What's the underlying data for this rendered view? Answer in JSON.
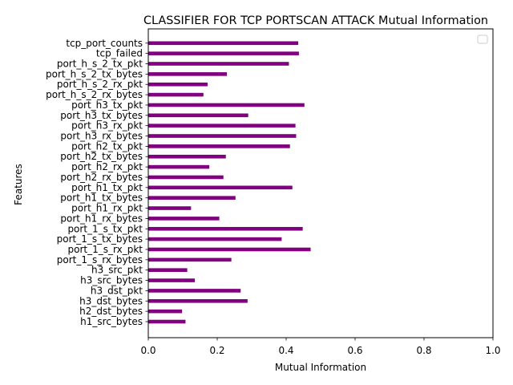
{
  "chart_data": {
    "type": "bar",
    "orientation": "horizontal",
    "title": "CLASSIFIER FOR TCP PORTSCAN ATTACK Mutual Information",
    "xlabel": "Mutual Information",
    "ylabel": "Features",
    "xlim": [
      0,
      1
    ],
    "xticks": [
      "0.0",
      "0.2",
      "0.4",
      "0.6",
      "0.8",
      "1.0"
    ],
    "bar_color": "#800080",
    "legend": "top-right (empty)",
    "grid": false,
    "categories": [
      "h1_src_bytes",
      "h2_dst_bytes",
      "h3_dst_bytes",
      "h3_dst_pkt",
      "h3_src_bytes",
      "h3_src_pkt",
      "port_1_s_rx_bytes",
      "port_1_s_rx_pkt",
      "port_1_s_tx_bytes",
      "port_1_s_tx_pkt",
      "port_h1_rx_bytes",
      "port_h1_rx_pkt",
      "port_h1_tx_bytes",
      "port_h1_tx_pkt",
      "port_h2_rx_bytes",
      "port_h2_rx_pkt",
      "port_h2_tx_bytes",
      "port_h2_tx_pkt",
      "port_h3_rx_bytes",
      "port_h3_rx_pkt",
      "port_h3_tx_bytes",
      "port_h3_tx_pkt",
      "port_h_s_2_rx_bytes",
      "port_h_s_2_rx_pkt",
      "port_h_s_2_tx_bytes",
      "port_h_s_2_tx_pkt",
      "tcp_failed",
      "tcp_port_counts"
    ],
    "values": [
      0.108,
      0.098,
      0.288,
      0.268,
      0.135,
      0.113,
      0.241,
      0.471,
      0.387,
      0.448,
      0.206,
      0.124,
      0.253,
      0.418,
      0.218,
      0.177,
      0.225,
      0.411,
      0.429,
      0.427,
      0.29,
      0.453,
      0.16,
      0.172,
      0.228,
      0.408,
      0.437,
      0.435
    ]
  }
}
